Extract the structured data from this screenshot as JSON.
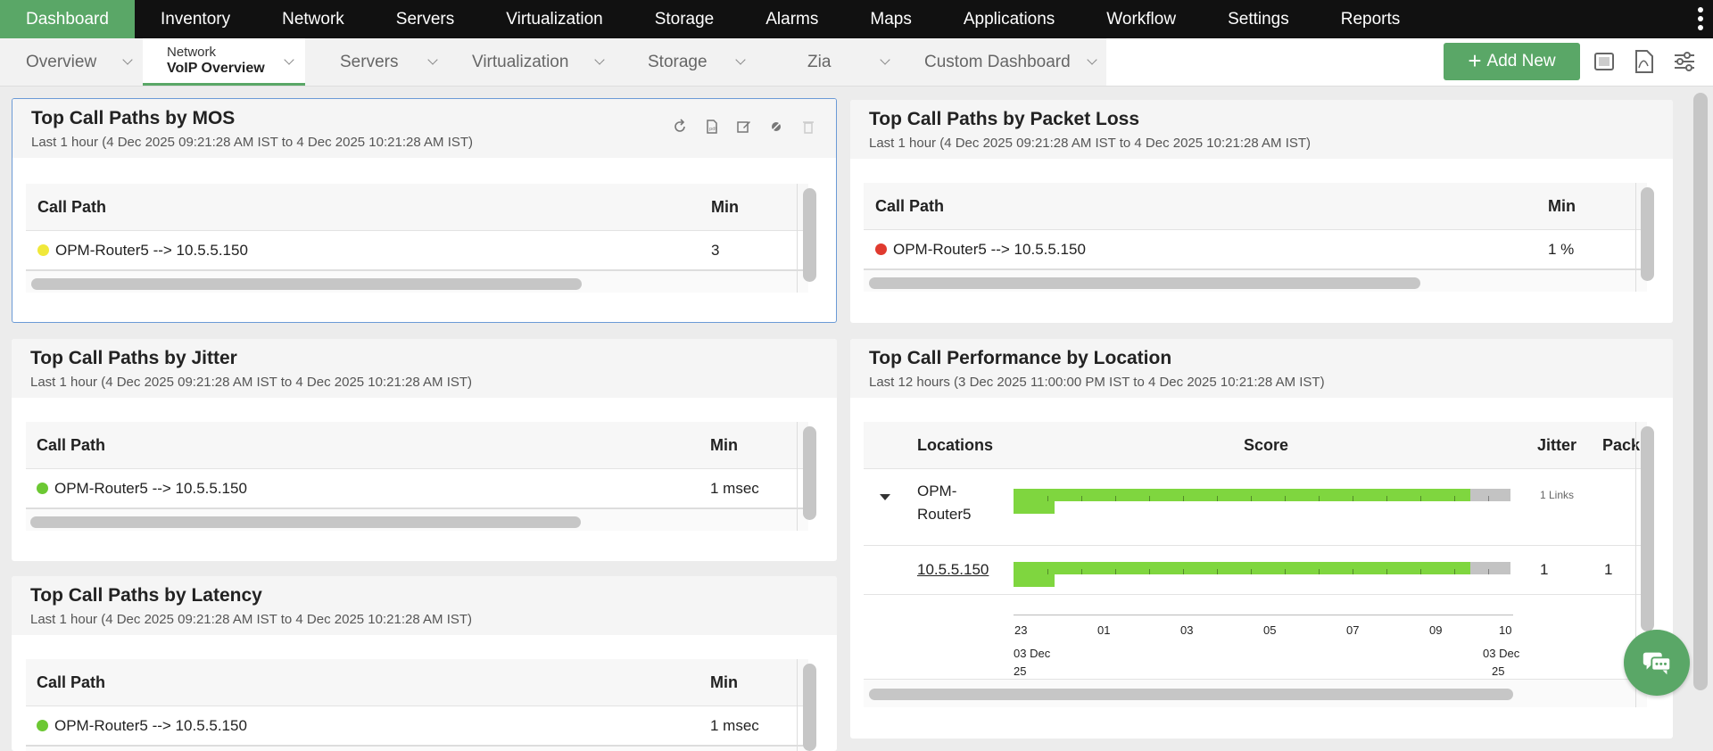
{
  "topnav": {
    "tabs": [
      "Dashboard",
      "Inventory",
      "Network",
      "Servers",
      "Virtualization",
      "Storage",
      "Alarms",
      "Maps",
      "Applications",
      "Workflow",
      "Settings",
      "Reports"
    ],
    "active": "Dashboard"
  },
  "subnav": {
    "overview": "Overview",
    "network_small": "Network",
    "network_bold": "VoIP Overview",
    "servers": "Servers",
    "virtualization": "Virtualization",
    "storage": "Storage",
    "zia": "Zia",
    "custom": "Custom Dashboard",
    "add_new": "Add New",
    "add_new_icon": "plus-icon"
  },
  "widgets": {
    "mos": {
      "title": "Top Call Paths by MOS",
      "subtitle": "Last 1 hour (4 Dec 2025 09:21:28 AM IST to 4 Dec 2025 10:21:28 AM IST)",
      "col1": "Call Path",
      "col2": "Min",
      "row_path": "OPM-Router5 --> 10.5.5.150",
      "row_value": "3",
      "dot_color": "#f0e83a"
    },
    "packet_loss": {
      "title": "Top Call Paths by Packet Loss",
      "subtitle": "Last 1 hour (4 Dec 2025 09:21:28 AM IST to 4 Dec 2025 10:21:28 AM IST)",
      "col1": "Call Path",
      "col2": "Min",
      "row_path": "OPM-Router5 --> 10.5.5.150",
      "row_value": "1 %",
      "dot_color": "#e03a2f"
    },
    "jitter": {
      "title": "Top Call Paths by Jitter",
      "subtitle": "Last 1 hour (4 Dec 2025 09:21:28 AM IST to 4 Dec 2025 10:21:28 AM IST)",
      "col1": "Call Path",
      "col2": "Min",
      "row_path": "OPM-Router5 --> 10.5.5.150",
      "row_value": "1 msec",
      "dot_color": "#6cc833"
    },
    "latency": {
      "title": "Top Call Paths by Latency",
      "subtitle": "Last 1 hour (4 Dec 2025 09:21:28 AM IST to 4 Dec 2025 10:21:28 AM IST)",
      "col1": "Call Path",
      "col2": "Min",
      "row_path": "OPM-Router5 --> 10.5.5.150",
      "row_value": "1 msec",
      "dot_color": "#6cc833"
    },
    "location": {
      "title": "Top Call Performance by Location",
      "subtitle": "Last 12 hours (3 Dec 2025 11:00:00 PM IST to 4 Dec 2025 10:21:28 AM IST)",
      "col_locations": "Locations",
      "col_score": "Score",
      "col_jitter": "Jitter",
      "col_packet": "Pack",
      "row1_name_a": "OPM-",
      "row1_name_b": "Router5",
      "row1_links": "1 Links",
      "row2_name": "10.5.5.150",
      "row2_jitter": "1",
      "row2_packet": "1",
      "axis_ticks": [
        "23",
        "01",
        "03",
        "05",
        "07",
        "09",
        "10"
      ],
      "axis_date_left": "03 Dec",
      "axis_date_left2": "25",
      "axis_date_right": "03 Dec",
      "axis_date_right2": "25"
    }
  },
  "chart_data": {
    "type": "bar",
    "title": "Score",
    "categories": [
      "OPM-Router5",
      "10.5.5.150"
    ],
    "good_fraction": [
      0.92,
      0.92
    ],
    "x_tick_labels": [
      "23",
      "01",
      "03",
      "05",
      "07",
      "09",
      "10"
    ]
  },
  "icons": {
    "refresh": "refresh-icon",
    "pdf": "pdf-icon",
    "edit": "edit-icon",
    "unlink": "unlink-icon",
    "delete": "delete-icon",
    "chat": "chat-icon",
    "fullscreen": "fullscreen-icon",
    "export": "export-pdf-icon",
    "settings": "sliders-icon"
  }
}
